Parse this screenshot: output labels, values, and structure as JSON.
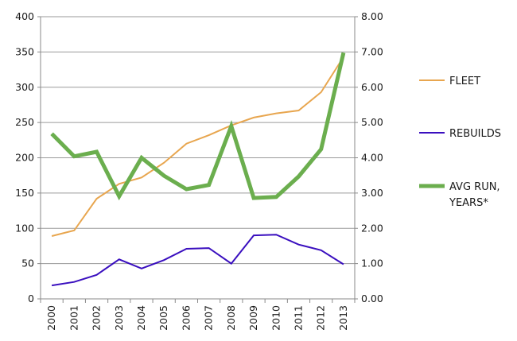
{
  "chart_data": {
    "type": "line",
    "title": "",
    "xlabel": "",
    "ylabel": "",
    "categories": [
      "2000",
      "2001",
      "2002",
      "2003",
      "2004",
      "2005",
      "2006",
      "2007",
      "2008",
      "2009",
      "2010",
      "2011",
      "2012",
      "2013"
    ],
    "ylim": [
      0,
      400
    ],
    "y2lim": [
      0,
      8
    ],
    "yticks": [
      "0",
      "50",
      "100",
      "150",
      "200",
      "250",
      "300",
      "350",
      "400"
    ],
    "y2ticks": [
      "0.00",
      "1.00",
      "2.00",
      "3.00",
      "4.00",
      "5.00",
      "6.00",
      "7.00",
      "8.00"
    ],
    "grid": true,
    "legend_position": "right",
    "series": [
      {
        "name": "FLEET",
        "axis": "left",
        "color": "#E8A64F",
        "values": [
          89,
          97,
          142,
          163,
          172,
          193,
          220,
          232,
          246,
          257,
          263,
          267,
          293,
          343
        ]
      },
      {
        "name": "REBUILDS",
        "axis": "left",
        "color": "#3A0FBF",
        "values": [
          19,
          24,
          34,
          56,
          43,
          55,
          71,
          72,
          50,
          90,
          91,
          77,
          69,
          49
        ]
      },
      {
        "name": "AVG RUN, YEARS*",
        "name_lines": [
          "AVG RUN,",
          "YEARS*"
        ],
        "axis": "right",
        "color": "#6BAE4E",
        "values": [
          4.68,
          4.04,
          4.17,
          2.91,
          4.0,
          3.49,
          3.11,
          3.23,
          4.9,
          2.86,
          2.89,
          3.47,
          4.24,
          6.98
        ]
      }
    ]
  }
}
